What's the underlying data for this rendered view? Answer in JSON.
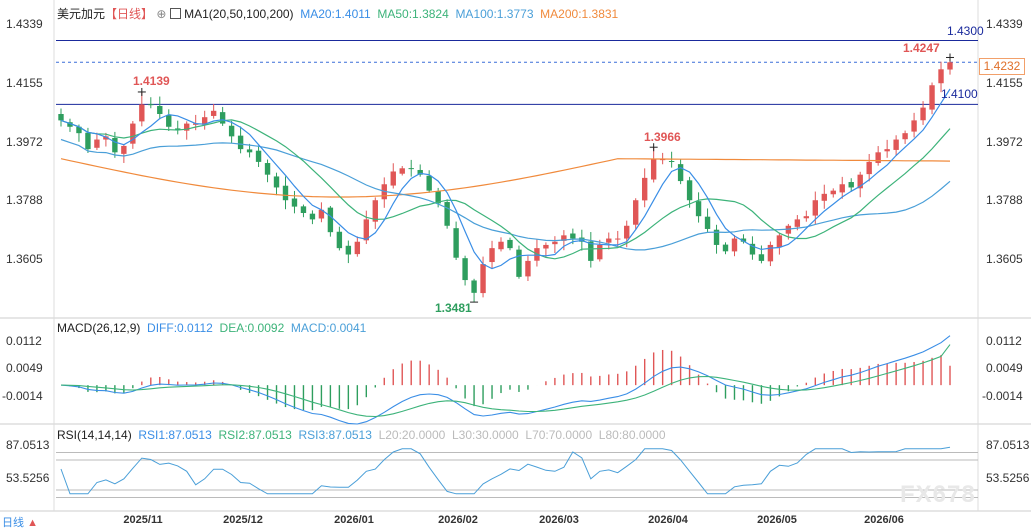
{
  "header": {
    "symbol": "美元加元",
    "period": "【日线】",
    "ma_label": "MA1(20,50,100,200)",
    "ma20": "MA20:1.4011",
    "ma50": "MA50:1.3824",
    "ma100": "MA100:1.3773",
    "ma200": "MA200:1.3831"
  },
  "macd_header": {
    "label": "MACD(26,12,9)",
    "diff": "DIFF:0.0112",
    "dea": "DEA:0.0092",
    "macd": "MACD:0.0041"
  },
  "rsi_header": {
    "label": "RSI(14,14,14)",
    "rsi1": "RSI1:87.0513",
    "rsi2": "RSI2:87.0513",
    "rsi3": "RSI3:87.0513",
    "l20": "L20:20.0000",
    "l30": "L30:30.0000",
    "l70": "L70:70.0000",
    "l80": "L80:80.0000"
  },
  "price_axis": [
    "1.4339",
    "1.4155",
    "1.3972",
    "1.3788",
    "1.3605"
  ],
  "macd_axis": [
    "0.0112",
    "0.0049",
    "-0.0014"
  ],
  "rsi_axis": [
    "87.0513",
    "53.5256"
  ],
  "x_axis": [
    "2025/11",
    "2025/12",
    "2026/01",
    "2026/02",
    "2026/03",
    "2026/04",
    "2026/05",
    "2026/06"
  ],
  "current_price": "1.4232",
  "annotations": {
    "hline_upper": "1.4300",
    "hline_lower": "1.4100",
    "high_recent": "1.4247",
    "high_nov": "1.4139",
    "high_mar": "1.3966",
    "low_feb": "1.3481"
  },
  "watermark": "FX678",
  "colors": {
    "up": "#e05656",
    "down": "#2e9e5e",
    "ma20": "#3a8ee6",
    "ma50": "#3db37a",
    "ma100": "#4a9fd8",
    "ma200": "#f08a3c",
    "level": "#1a2a9c"
  },
  "chart_data": {
    "type": "candlestick",
    "title": "美元加元 日线",
    "period": "daily",
    "x_range": [
      "2025-10",
      "2026-06"
    ],
    "ylim": [
      1.345,
      1.438
    ],
    "levels": [
      1.43,
      1.41
    ],
    "current": 1.4232,
    "extremes": {
      "high_2025_11": 1.4139,
      "high_2026_03": 1.3966,
      "low_2026_02": 1.3481,
      "high_recent": 1.4247
    },
    "close_path": [
      1.405,
      1.403,
      1.401,
      1.396,
      1.399,
      1.4,
      1.395,
      1.397,
      1.404,
      1.41,
      1.41,
      1.407,
      1.403,
      1.402,
      1.404,
      1.404,
      1.406,
      1.408,
      1.404,
      1.4,
      1.396,
      1.395,
      1.392,
      1.388,
      1.384,
      1.38,
      1.378,
      1.376,
      1.374,
      1.377,
      1.37,
      1.365,
      1.363,
      1.367,
      1.374,
      1.38,
      1.385,
      1.389,
      1.39,
      1.39,
      1.388,
      1.383,
      1.379,
      1.372,
      1.362,
      1.355,
      1.351,
      1.36,
      1.365,
      1.367,
      1.365,
      1.356,
      1.361,
      1.365,
      1.366,
      1.367,
      1.369,
      1.368,
      1.367,
      1.361,
      1.366,
      1.368,
      1.368,
      1.372,
      1.38,
      1.387,
      1.393,
      1.393,
      1.392,
      1.386,
      1.38,
      1.375,
      1.371,
      1.366,
      1.364,
      1.368,
      1.367,
      1.363,
      1.361,
      1.366,
      1.369,
      1.372,
      1.374,
      1.375,
      1.38,
      1.382,
      1.383,
      1.385,
      1.384,
      1.388,
      1.392,
      1.395,
      1.396,
      1.399,
      1.401,
      1.405,
      1.409,
      1.416,
      1.421,
      1.4232
    ],
    "ma_periods": [
      20,
      50,
      100,
      200
    ],
    "ma_last": {
      "MA20": 1.4011,
      "MA50": 1.3824,
      "MA100": 1.3773,
      "MA200": 1.3831
    },
    "macd": {
      "params": [
        26,
        12,
        9
      ],
      "DIFF": 0.0112,
      "DEA": 0.0092,
      "MACD": 0.0041,
      "ylim": [
        -0.0045,
        0.0125
      ]
    },
    "rsi": {
      "params": [
        14,
        14,
        14
      ],
      "RSI1": 87.0513,
      "RSI2": 87.0513,
      "RSI3": 87.0513,
      "levels": [
        20,
        30,
        70,
        80
      ]
    }
  }
}
